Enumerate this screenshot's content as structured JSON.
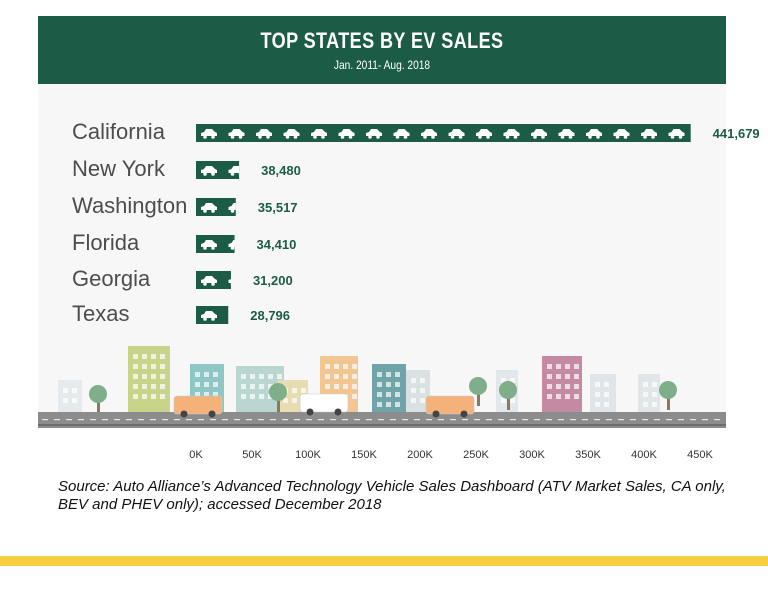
{
  "colors": {
    "header_bg": "#1c5c47",
    "bar": "#1c5c47",
    "label": "#4d4d4d",
    "value": "#1c5c47",
    "accent_bar": "#f6cf40"
  },
  "chart_data": {
    "type": "bar",
    "orientation": "horizontal",
    "title": "TOP STATES BY EV SALES",
    "subtitle": "Jan. 2011- Aug. 2018",
    "categories": [
      "California",
      "New York",
      "Washington",
      "Florida",
      "Georgia",
      "Texas"
    ],
    "values": [
      441679,
      38480,
      35517,
      34410,
      31200,
      28796
    ],
    "value_labels": [
      "441,679",
      "38,480",
      "35,517",
      "34,410",
      "31,200",
      "28,796"
    ],
    "xlim": [
      0,
      450000
    ],
    "x_ticks": [
      0,
      50000,
      100000,
      150000,
      200000,
      250000,
      300000,
      350000,
      400000,
      450000
    ],
    "x_tick_labels": [
      "0K",
      "50K",
      "100K",
      "150K",
      "200K",
      "250K",
      "300K",
      "350K",
      "400K",
      "450K"
    ],
    "grid": false,
    "legend": "none",
    "icon": "car-icon"
  },
  "source": "Source: Auto Alliance’s Advanced Technology Vehicle Sales Dashboard (ATV Market Sales, CA only, BEV and PHEV only); accessed December 2018"
}
